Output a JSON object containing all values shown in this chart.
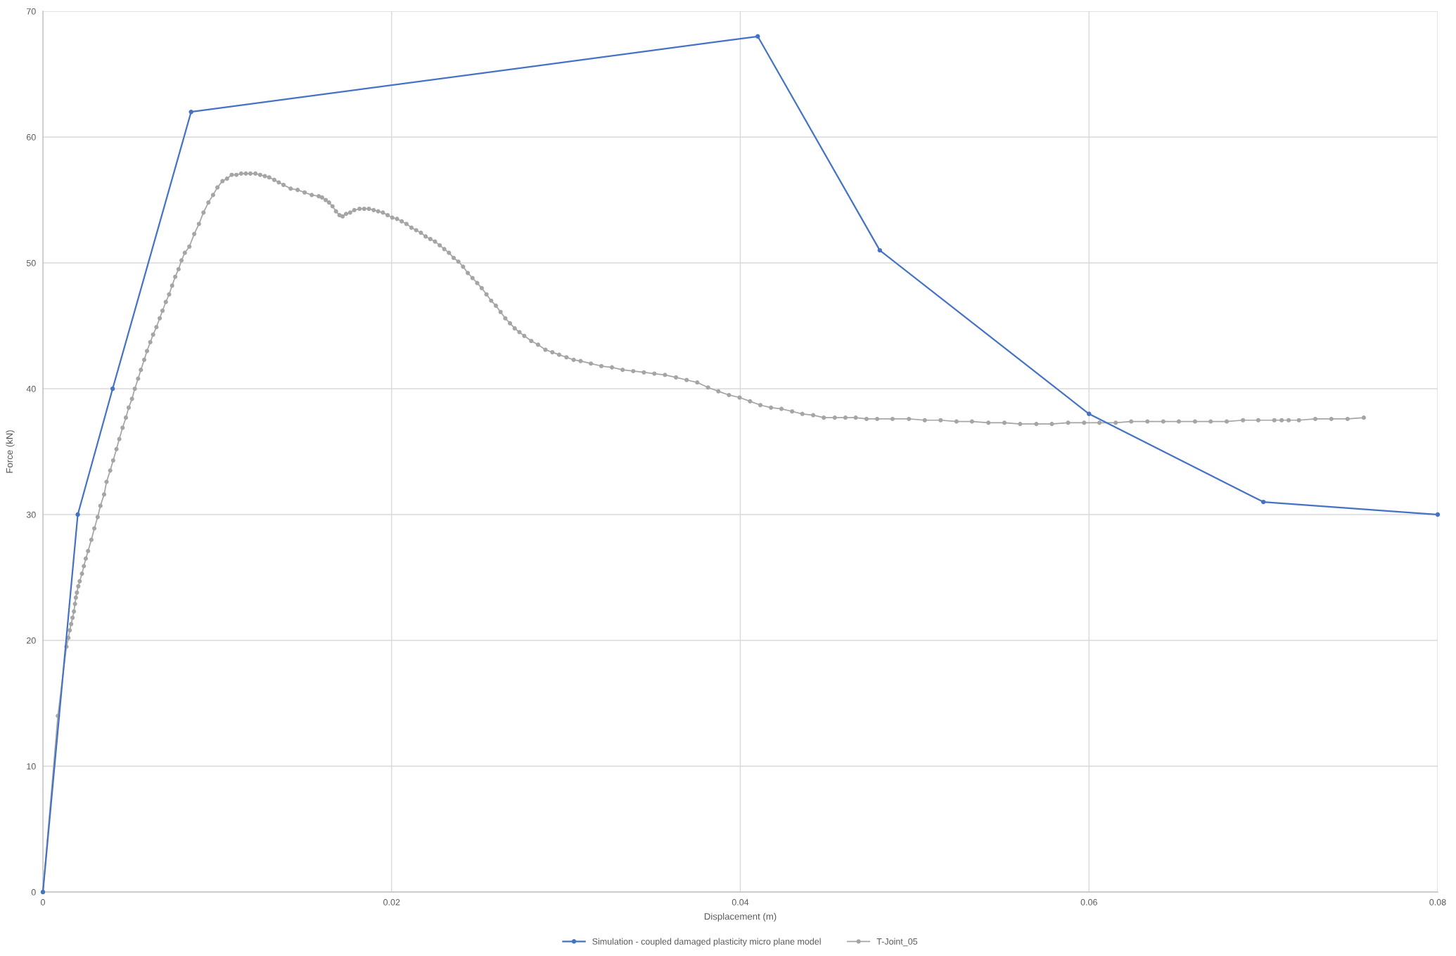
{
  "chart_data": {
    "type": "line",
    "xlabel": "Displacement (m)",
    "ylabel": "Force (kN)",
    "xlim": [
      0,
      0.08
    ],
    "ylim": [
      0,
      70
    ],
    "xticks": [
      0,
      0.02,
      0.04,
      0.06,
      0.08
    ],
    "yticks": [
      0,
      10,
      20,
      30,
      40,
      50,
      60,
      70
    ],
    "grid": true,
    "legend": "bottom",
    "marker": "circle",
    "line_style": "solid",
    "series": [
      {
        "name": "Simulation - coupled damaged plasticity micro plane model",
        "color": "#4472c4",
        "x": [
          0,
          0.002,
          0.004,
          0.0085,
          0.041,
          0.048,
          0.06,
          0.07,
          0.08
        ],
        "values": [
          0,
          30,
          40,
          62,
          68,
          51,
          38,
          31,
          30
        ]
      },
      {
        "name": "T-Joint_05",
        "color": "#a5a5a5",
        "x": [
          0,
          0.00086,
          0.00135,
          0.00146,
          0.00154,
          0.00162,
          0.0017,
          0.00178,
          0.00184,
          0.00189,
          0.00195,
          0.00203,
          0.00211,
          0.00224,
          0.00235,
          0.00246,
          0.00259,
          0.00278,
          0.00295,
          0.00314,
          0.0033,
          0.00351,
          0.00365,
          0.00386,
          0.00403,
          0.00422,
          0.00438,
          0.00457,
          0.00476,
          0.00492,
          0.00511,
          0.00527,
          0.00546,
          0.00562,
          0.00581,
          0.00597,
          0.00616,
          0.00632,
          0.00651,
          0.0067,
          0.00686,
          0.00705,
          0.00724,
          0.00741,
          0.00759,
          0.00778,
          0.00795,
          0.00814,
          0.0084,
          0.00868,
          0.00895,
          0.00921,
          0.00949,
          0.00976,
          0.01001,
          0.0103,
          0.01056,
          0.01083,
          0.0111,
          0.01137,
          0.01164,
          0.0119,
          0.01219,
          0.01246,
          0.01273,
          0.01298,
          0.01327,
          0.01353,
          0.0138,
          0.01421,
          0.01461,
          0.01501,
          0.01542,
          0.01582,
          0.01601,
          0.01622,
          0.01641,
          0.01661,
          0.01681,
          0.01701,
          0.01719,
          0.01739,
          0.01762,
          0.01786,
          0.01816,
          0.01843,
          0.0187,
          0.01897,
          0.01923,
          0.0195,
          0.01977,
          0.02004,
          0.02031,
          0.02058,
          0.02085,
          0.02114,
          0.02141,
          0.02168,
          0.02195,
          0.02222,
          0.02249,
          0.02276,
          0.02302,
          0.02329,
          0.02356,
          0.02383,
          0.0241,
          0.02437,
          0.02464,
          0.02491,
          0.02517,
          0.02544,
          0.02571,
          0.02598,
          0.02625,
          0.02652,
          0.02679,
          0.02706,
          0.02733,
          0.02761,
          0.02801,
          0.0284,
          0.02882,
          0.02922,
          0.02961,
          0.03003,
          0.03044,
          0.03084,
          0.03143,
          0.03203,
          0.03264,
          0.03325,
          0.03386,
          0.03447,
          0.03507,
          0.03568,
          0.03631,
          0.03692,
          0.03753,
          0.03815,
          0.03874,
          0.03935,
          0.03996,
          0.04056,
          0.04115,
          0.04176,
          0.04236,
          0.04297,
          0.04356,
          0.04418,
          0.04479,
          0.04542,
          0.04603,
          0.04662,
          0.04724,
          0.04785,
          0.04873,
          0.04967,
          0.05058,
          0.05149,
          0.0524,
          0.05329,
          0.05423,
          0.05515,
          0.05605,
          0.05698,
          0.05787,
          0.0588,
          0.05972,
          0.0606,
          0.06153,
          0.06242,
          0.06335,
          0.06426,
          0.06515,
          0.06608,
          0.06698,
          0.0679,
          0.06883,
          0.06971,
          0.07063,
          0.07105,
          0.07145,
          0.07204,
          0.07298,
          0.0739,
          0.07483,
          0.07576
        ],
        "values": [
          0,
          14.0,
          19.5,
          20.2,
          20.8,
          21.3,
          21.8,
          22.3,
          22.9,
          23.4,
          23.8,
          24.3,
          24.7,
          25.3,
          25.9,
          26.5,
          27.1,
          28.0,
          28.9,
          29.8,
          30.7,
          31.6,
          32.6,
          33.5,
          34.3,
          35.2,
          36.0,
          36.9,
          37.7,
          38.5,
          39.2,
          40.0,
          40.8,
          41.5,
          42.3,
          43.0,
          43.7,
          44.3,
          44.9,
          45.6,
          46.2,
          46.9,
          47.5,
          48.2,
          48.9,
          49.5,
          50.2,
          50.8,
          51.3,
          52.3,
          53.1,
          54.0,
          54.8,
          55.4,
          56.0,
          56.5,
          56.7,
          57.0,
          57.0,
          57.1,
          57.1,
          57.1,
          57.1,
          57.0,
          56.9,
          56.8,
          56.6,
          56.4,
          56.2,
          55.9,
          55.8,
          55.6,
          55.4,
          55.3,
          55.2,
          55.0,
          54.8,
          54.5,
          54.1,
          53.8,
          53.7,
          53.9,
          54.0,
          54.2,
          54.3,
          54.3,
          54.3,
          54.2,
          54.1,
          54.0,
          53.8,
          53.6,
          53.5,
          53.3,
          53.1,
          52.8,
          52.6,
          52.4,
          52.1,
          51.9,
          51.7,
          51.4,
          51.1,
          50.8,
          50.4,
          50.1,
          49.7,
          49.2,
          48.8,
          48.4,
          48.0,
          47.5,
          47.0,
          46.6,
          46.1,
          45.6,
          45.2,
          44.8,
          44.5,
          44.2,
          43.8,
          43.5,
          43.1,
          42.9,
          42.7,
          42.5,
          42.3,
          42.2,
          42.0,
          41.8,
          41.7,
          41.5,
          41.4,
          41.3,
          41.2,
          41.1,
          40.9,
          40.7,
          40.5,
          40.1,
          39.8,
          39.5,
          39.3,
          39.0,
          38.7,
          38.5,
          38.4,
          38.2,
          38.0,
          37.9,
          37.7,
          37.7,
          37.7,
          37.7,
          37.6,
          37.6,
          37.6,
          37.6,
          37.5,
          37.5,
          37.4,
          37.4,
          37.3,
          37.3,
          37.2,
          37.2,
          37.2,
          37.3,
          37.3,
          37.3,
          37.3,
          37.4,
          37.4,
          37.4,
          37.4,
          37.4,
          37.4,
          37.4,
          37.5,
          37.5,
          37.5,
          37.5,
          37.5,
          37.5,
          37.6,
          37.6,
          37.6,
          37.7
        ]
      }
    ]
  }
}
